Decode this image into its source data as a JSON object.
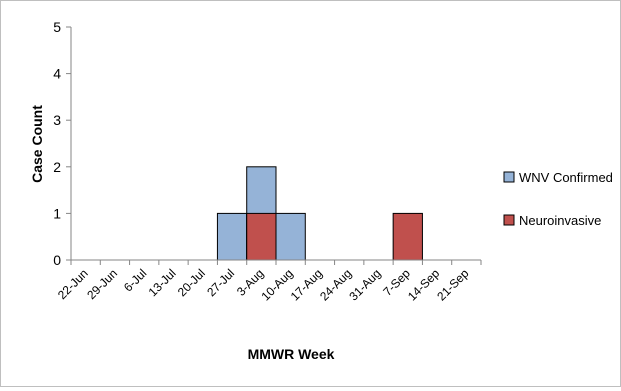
{
  "chart_data": {
    "type": "bar",
    "stacked": false,
    "overlap": true,
    "title": "",
    "xlabel": "MMWR Week",
    "ylabel": "Case Count",
    "ylim": [
      0,
      5
    ],
    "yticks": [
      0,
      1,
      2,
      3,
      4,
      5
    ],
    "grid": false,
    "legend_position": "right",
    "categories": [
      "22-Jun",
      "29-Jun",
      "6-Jul",
      "13-Jul",
      "20-Jul",
      "27-Jul",
      "3-Aug",
      "10-Aug",
      "17-Aug",
      "24-Aug",
      "31-Aug",
      "7-Sep",
      "14-Sep",
      "21-Sep"
    ],
    "series": [
      {
        "name": "WNV Confirmed",
        "color": "#95b3d7",
        "values": [
          0,
          0,
          0,
          0,
          0,
          1,
          2,
          1,
          0,
          0,
          0,
          0,
          0,
          0
        ]
      },
      {
        "name": "Neuroinvasive",
        "color": "#c0504d",
        "values": [
          0,
          0,
          0,
          0,
          0,
          0,
          1,
          0,
          0,
          0,
          0,
          1,
          0,
          0
        ]
      }
    ]
  }
}
